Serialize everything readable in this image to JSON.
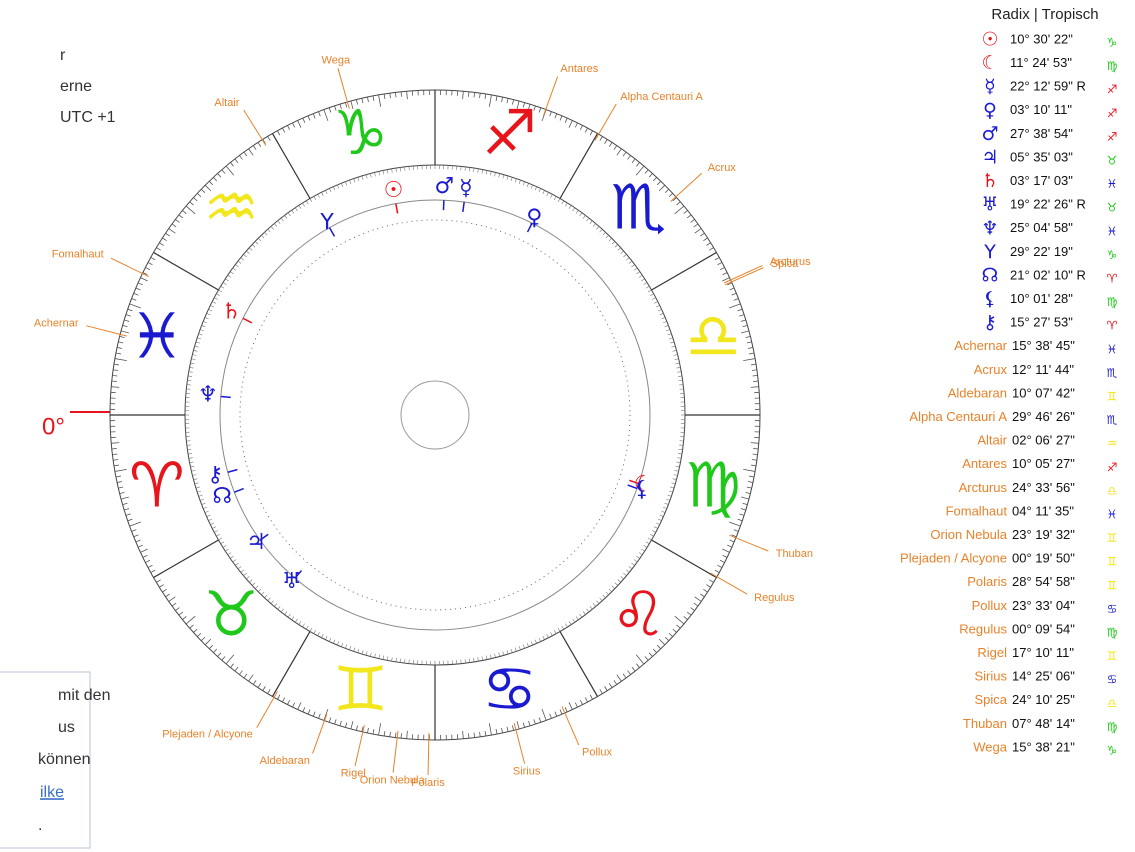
{
  "left_text": [
    "r",
    "erne",
    "UTC +1"
  ],
  "info_box": {
    "lines": [
      "mit den",
      "us",
      "können"
    ],
    "link": "ilke",
    "end": "."
  },
  "wheel": {
    "zero_label": "0°",
    "signs": [
      "♈",
      "♉",
      "♊",
      "♋",
      "♌",
      "♍",
      "♎",
      "♏",
      "♐",
      "♑",
      "♒",
      "♓"
    ],
    "element_colors": [
      "#e8141b",
      "#1fc81a",
      "#f2e61c",
      "#1a1ad0"
    ]
  },
  "table": {
    "title": "Radix | Tropisch",
    "planets": [
      {
        "symbol": "☉",
        "color": "#e8141b",
        "position": "10° 30' 22\"",
        "sign": "♑"
      },
      {
        "symbol": "☾",
        "color": "#e8141b",
        "position": "11° 24' 53\"",
        "sign": "♍"
      },
      {
        "symbol": "☿",
        "color": "#1a1ad0",
        "position": "22° 12' 59\" R",
        "sign": "♐"
      },
      {
        "symbol": "♀",
        "color": "#1a1ad0",
        "position": "03° 10' 11\"",
        "sign": "♐"
      },
      {
        "symbol": "♂",
        "color": "#1a1ad0",
        "position": "27° 38' 54\"",
        "sign": "♐"
      },
      {
        "symbol": "♃",
        "color": "#1a1ad0",
        "position": "05° 35' 03\"",
        "sign": "♉"
      },
      {
        "symbol": "♄",
        "color": "#e8141b",
        "position": "03° 17' 03\"",
        "sign": "♓"
      },
      {
        "symbol": "♅",
        "color": "#1a1ad0",
        "position": "19° 22' 26\" R",
        "sign": "♉"
      },
      {
        "symbol": "♆",
        "color": "#1a1ad0",
        "position": "25° 04' 58\"",
        "sign": "♓"
      },
      {
        "symbol": "Υ",
        "color": "#1a1ad0",
        "position": "29° 22' 19\"",
        "sign": "♑"
      },
      {
        "symbol": "☊",
        "color": "#1a1ad0",
        "position": "21° 02' 10\" R",
        "sign": "♈"
      },
      {
        "symbol": "⚸",
        "color": "#1a1ad0",
        "position": "10° 01' 28\"",
        "sign": "♍"
      },
      {
        "symbol": "⚷",
        "color": "#1a1ad0",
        "position": "15° 27' 53\"",
        "sign": "♈"
      }
    ],
    "stars": [
      {
        "name": "Achernar",
        "position": "15° 38' 45\"",
        "sign": "♓"
      },
      {
        "name": "Acrux",
        "position": "12° 11' 44\"",
        "sign": "♏"
      },
      {
        "name": "Aldebaran",
        "position": "10° 07' 42\"",
        "sign": "♊"
      },
      {
        "name": "Alpha Centauri A",
        "position": "29° 46' 26\"",
        "sign": "♏"
      },
      {
        "name": "Altair",
        "position": "02° 06' 27\"",
        "sign": "♒"
      },
      {
        "name": "Antares",
        "position": "10° 05' 27\"",
        "sign": "♐"
      },
      {
        "name": "Arcturus",
        "position": "24° 33' 56\"",
        "sign": "♎"
      },
      {
        "name": "Fomalhaut",
        "position": "04° 11' 35\"",
        "sign": "♓"
      },
      {
        "name": "Orion Nebula",
        "position": "23° 19' 32\"",
        "sign": "♊"
      },
      {
        "name": "Plejaden / Alcyone",
        "position": "00° 19' 50\"",
        "sign": "♊"
      },
      {
        "name": "Polaris",
        "position": "28° 54' 58\"",
        "sign": "♊"
      },
      {
        "name": "Pollux",
        "position": "23° 33' 04\"",
        "sign": "♋"
      },
      {
        "name": "Regulus",
        "position": "00° 09' 54\"",
        "sign": "♍"
      },
      {
        "name": "Rigel",
        "position": "17° 10' 11\"",
        "sign": "♊"
      },
      {
        "name": "Sirius",
        "position": "14° 25' 06\"",
        "sign": "♋"
      },
      {
        "name": "Spica",
        "position": "24° 10' 25\"",
        "sign": "♎"
      },
      {
        "name": "Thuban",
        "position": "07° 48' 14\"",
        "sign": "♍"
      },
      {
        "name": "Wega",
        "position": "15° 38' 21\"",
        "sign": "♑"
      }
    ]
  }
}
